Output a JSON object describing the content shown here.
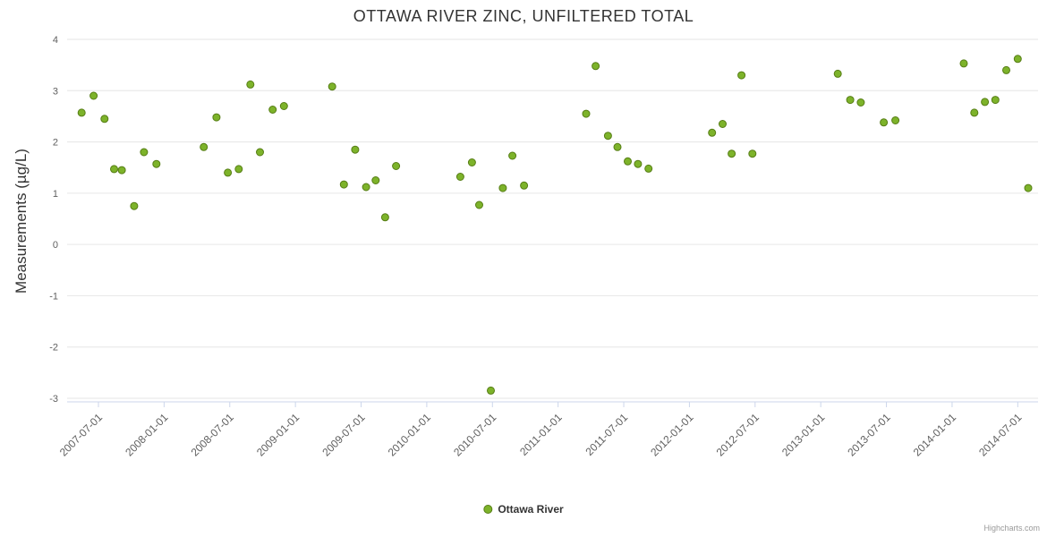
{
  "title": "OTTAWA RIVER ZINC, UNFILTERED TOTAL",
  "credits": "Highcharts.com",
  "legend": {
    "items": [
      {
        "label": "Ottawa River",
        "color": "#7db32a"
      }
    ]
  },
  "colors": {
    "grid": "#e6e6e6",
    "axis_line": "#ccd6eb",
    "tick_text": "#606060",
    "title_text": "#333333",
    "point_fill": "#7db32a",
    "point_stroke": "#567d15"
  },
  "chart_data": {
    "type": "scatter",
    "title": "OTTAWA RIVER ZINC, UNFILTERED TOTAL",
    "xlabel": "",
    "ylabel": "Measurements (µg/L)",
    "ylim": [
      -3,
      4
    ],
    "y_ticks": [
      "4",
      "3",
      "2",
      "1",
      "0",
      "-1",
      "-2",
      "-3"
    ],
    "x_ticks": [
      "2007-07-01",
      "2008-01-01",
      "2008-07-01",
      "2009-01-01",
      "2009-07-01",
      "2010-01-01",
      "2010-07-01",
      "2011-01-01",
      "2011-07-01",
      "2012-01-01",
      "2012-07-01",
      "2013-01-01",
      "2013-07-01",
      "2014-01-01",
      "2014-07-01"
    ],
    "grid": "horizontal-only",
    "legend_position": "bottom-center",
    "series": [
      {
        "name": "Ottawa River",
        "color": "#7db32a",
        "points": [
          [
            "2007-05-15",
            2.57
          ],
          [
            "2007-06-18",
            2.9
          ],
          [
            "2007-07-18",
            2.45
          ],
          [
            "2007-08-14",
            1.47
          ],
          [
            "2007-09-05",
            1.45
          ],
          [
            "2007-10-09",
            0.75
          ],
          [
            "2007-11-06",
            1.8
          ],
          [
            "2007-12-10",
            1.57
          ],
          [
            "2008-04-20",
            1.9
          ],
          [
            "2008-05-25",
            2.48
          ],
          [
            "2008-06-26",
            1.4
          ],
          [
            "2008-07-26",
            1.47
          ],
          [
            "2008-08-28",
            3.12
          ],
          [
            "2008-09-24",
            1.8
          ],
          [
            "2008-10-29",
            2.63
          ],
          [
            "2008-11-30",
            2.7
          ],
          [
            "2009-04-12",
            3.08
          ],
          [
            "2009-05-14",
            1.17
          ],
          [
            "2009-06-15",
            1.85
          ],
          [
            "2009-07-15",
            1.12
          ],
          [
            "2009-08-11",
            1.25
          ],
          [
            "2009-09-07",
            0.53
          ],
          [
            "2009-10-07",
            1.53
          ],
          [
            "2010-04-03",
            1.32
          ],
          [
            "2010-05-05",
            1.6
          ],
          [
            "2010-05-25",
            0.77
          ],
          [
            "2010-06-27",
            -2.85
          ],
          [
            "2010-07-30",
            1.1
          ],
          [
            "2010-08-26",
            1.73
          ],
          [
            "2010-09-28",
            1.15
          ],
          [
            "2011-03-18",
            2.55
          ],
          [
            "2011-04-14",
            3.48
          ],
          [
            "2011-05-18",
            2.12
          ],
          [
            "2011-06-14",
            1.9
          ],
          [
            "2011-07-12",
            1.62
          ],
          [
            "2011-08-10",
            1.57
          ],
          [
            "2011-09-09",
            1.48
          ],
          [
            "2012-03-03",
            2.18
          ],
          [
            "2012-04-02",
            2.35
          ],
          [
            "2012-04-27",
            1.77
          ],
          [
            "2012-05-24",
            3.3
          ],
          [
            "2012-06-24",
            1.77
          ],
          [
            "2013-02-18",
            3.33
          ],
          [
            "2013-03-22",
            2.82
          ],
          [
            "2013-04-21",
            2.77
          ],
          [
            "2013-06-24",
            2.38
          ],
          [
            "2013-07-26",
            2.42
          ],
          [
            "2014-02-03",
            3.53
          ],
          [
            "2014-03-02",
            2.57
          ],
          [
            "2014-04-01",
            2.78
          ],
          [
            "2014-04-30",
            2.82
          ],
          [
            "2014-05-30",
            3.4
          ],
          [
            "2014-07-01",
            3.62
          ],
          [
            "2014-07-30",
            1.1
          ]
        ]
      }
    ]
  }
}
